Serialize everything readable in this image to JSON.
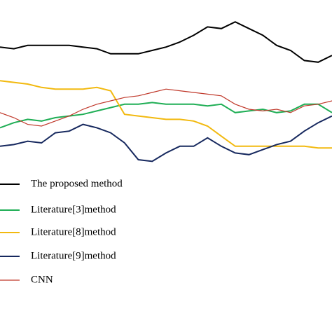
{
  "chart_data": {
    "type": "line",
    "x": [
      0,
      1,
      2,
      3,
      4,
      5,
      6,
      7,
      8,
      9,
      10,
      11,
      12,
      13,
      14,
      15,
      16,
      17,
      18,
      19,
      20,
      21,
      22,
      23,
      24
    ],
    "xlim": [
      0,
      24
    ],
    "ylim": [
      0,
      100
    ],
    "legend": "lower left",
    "series": [
      {
        "name": "The proposed method",
        "color": "#000000",
        "values": [
          72,
          71,
          73,
          73,
          73,
          73,
          72,
          71,
          68,
          68,
          68,
          70,
          72,
          75,
          79,
          84,
          83,
          87,
          83,
          79,
          73,
          70,
          64,
          63,
          67
        ]
      },
      {
        "name": "Literature[3]method",
        "color": "#1fae55",
        "values": [
          24,
          27,
          29,
          28,
          30,
          31,
          32,
          34,
          36,
          38,
          38,
          39,
          38,
          38,
          38,
          37,
          38,
          33,
          34,
          35,
          33,
          34,
          38,
          38,
          33
        ]
      },
      {
        "name": "Literature[8]method",
        "color": "#f2b90f",
        "values": [
          52,
          51,
          50,
          48,
          47,
          47,
          47,
          48,
          46,
          32,
          31,
          30,
          29,
          29,
          28,
          25,
          19,
          13,
          13,
          13,
          13,
          13,
          13,
          12,
          12
        ]
      },
      {
        "name": "Literature[9]method",
        "color": "#16285e",
        "values": [
          13,
          14,
          16,
          15,
          21,
          22,
          26,
          24,
          21,
          15,
          5,
          4,
          9,
          13,
          13,
          18,
          13,
          9,
          8,
          11,
          14,
          16,
          22,
          27,
          31
        ]
      },
      {
        "name": "CNN",
        "color": "#c0392b",
        "values": [
          33,
          30,
          26,
          25,
          28,
          31,
          35,
          38,
          40,
          42,
          43,
          45,
          47,
          46,
          45,
          44,
          43,
          38,
          35,
          34,
          35,
          33,
          37,
          38,
          40
        ]
      }
    ]
  }
}
